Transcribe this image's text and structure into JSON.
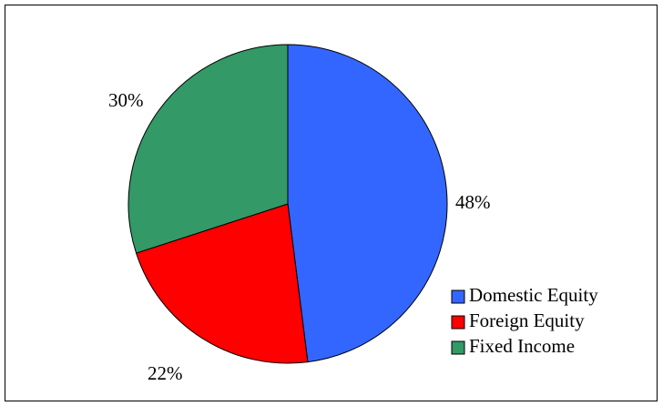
{
  "chart_data": {
    "type": "pie",
    "title": "",
    "start_angle_deg": 0,
    "direction": "clockwise",
    "slices": [
      {
        "label": "Domestic Equity",
        "value": 48,
        "value_label": "48%",
        "color": "#3366FF"
      },
      {
        "label": "Foreign Equity",
        "value": 22,
        "value_label": "22%",
        "color": "#FF0000"
      },
      {
        "label": "Fixed Income",
        "value": 30,
        "value_label": "30%",
        "color": "#339966"
      }
    ],
    "legend": {
      "position": "bottom-right",
      "entries": [
        "Domestic Equity",
        "Foreign Equity",
        "Fixed Income"
      ]
    }
  }
}
